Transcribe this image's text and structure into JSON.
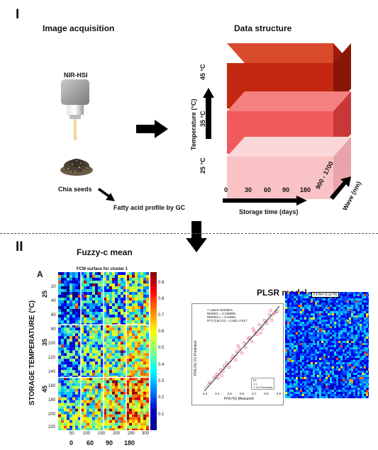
{
  "section1": {
    "number": "I",
    "image_acquisition": "Image acquisition",
    "camera_label": "NIR-HSI",
    "seeds_label": "Chia seeds",
    "fatty_acid": "Fatty acid profile by GC",
    "data_structure": "Data structure",
    "temps": [
      "45 °C",
      "35 °C",
      "25 °C"
    ],
    "temp_axis": "Temperature (°C)",
    "time_ticks": [
      "0",
      "30",
      "60",
      "90",
      "180"
    ],
    "time_axis": "Storage time (days)",
    "wave_range": "900 - 1700",
    "wave_axis": "Wave (nm)"
  },
  "section2": {
    "number": "II",
    "fuzzy_title": "Fuzzy-c mean",
    "panel_letter": "A",
    "fcm_title": "FCM surface for cluster 1",
    "y_axis_label": "STORAGE TEMPERATURE (°C)",
    "temp_groups": [
      "25",
      "35",
      "45"
    ],
    "y_ticks": [
      "20",
      "40",
      "60",
      "80",
      "100",
      "120",
      "140",
      "160",
      "180",
      "200",
      "220"
    ],
    "x_ticks": [
      "50",
      "100",
      "150",
      "200",
      "250",
      "300"
    ],
    "day_labels": [
      "0",
      "60",
      "90",
      "180"
    ],
    "colorbar_ticks": [
      "0.9",
      "0.8",
      "0.7",
      "0.6",
      "0.5",
      "0.4",
      "0.3",
      "0.2",
      "0.1"
    ],
    "plsr_title": "PLSR model",
    "plsr_legend_lines": [
      "7 Latent Variables",
      "RMSEC = 0.038080",
      "RMSECV = 0.04951",
      "R^2 (Cal,CV) = 0.933, 0.917"
    ],
    "plsr_ylabel": "FFA (%) CV Predicted",
    "plsr_xlabel": "FFA (%) Measured",
    "plsr_xticks": [
      "0.3",
      "0.4",
      "0.5",
      "0.6",
      "0.7",
      "0.8",
      "0.9"
    ],
    "plsr_legend": [
      "Fit",
      "1:1",
      "Y CV Predicted"
    ],
    "ffa_label": "FFA= 0.37%"
  },
  "colors": {
    "block45_front": "#c4270f",
    "block35_front": "#f05a5a",
    "block25_front": "#f9c3c6"
  },
  "chart_data": {
    "type": "scatter",
    "title": "",
    "xlabel": "FFA (%) Measured",
    "ylabel": "FFA (%) CV Predicted",
    "xlim": [
      0.3,
      0.9
    ],
    "ylim": [
      0.3,
      0.9
    ],
    "points": [
      [
        0.34,
        0.36
      ],
      [
        0.38,
        0.4
      ],
      [
        0.4,
        0.42
      ],
      [
        0.41,
        0.39
      ],
      [
        0.43,
        0.45
      ],
      [
        0.45,
        0.44
      ],
      [
        0.46,
        0.48
      ],
      [
        0.48,
        0.5
      ],
      [
        0.5,
        0.47
      ],
      [
        0.52,
        0.53
      ],
      [
        0.53,
        0.55
      ],
      [
        0.55,
        0.52
      ],
      [
        0.56,
        0.58
      ],
      [
        0.58,
        0.6
      ],
      [
        0.6,
        0.57
      ],
      [
        0.62,
        0.64
      ],
      [
        0.63,
        0.61
      ],
      [
        0.65,
        0.67
      ],
      [
        0.66,
        0.68
      ],
      [
        0.68,
        0.65
      ],
      [
        0.7,
        0.72
      ],
      [
        0.72,
        0.7
      ],
      [
        0.74,
        0.77
      ],
      [
        0.76,
        0.74
      ],
      [
        0.78,
        0.8
      ],
      [
        0.8,
        0.78
      ],
      [
        0.82,
        0.84
      ],
      [
        0.84,
        0.8
      ],
      [
        0.86,
        0.85
      ],
      [
        0.88,
        0.86
      ],
      [
        0.44,
        0.41
      ],
      [
        0.57,
        0.62
      ],
      [
        0.69,
        0.74
      ],
      [
        0.75,
        0.71
      ],
      [
        0.83,
        0.87
      ]
    ]
  }
}
